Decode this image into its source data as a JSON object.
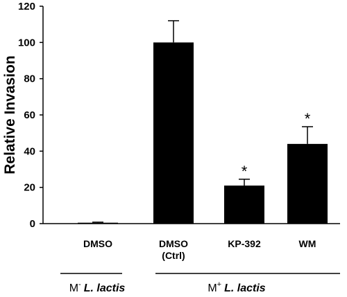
{
  "chart_data": {
    "type": "bar",
    "categories": [
      {
        "line1": "DMSO",
        "line2": ""
      },
      {
        "line1": "DMSO",
        "line2": "(Ctrl)"
      },
      {
        "line1": "KP-392",
        "line2": ""
      },
      {
        "line1": "WM",
        "line2": ""
      }
    ],
    "values": [
      0.5,
      100,
      21,
      44
    ],
    "errors": [
      0.3,
      12,
      3.5,
      9.5
    ],
    "significance": [
      "",
      "",
      "*",
      "*"
    ],
    "ylabel": "Relative Invasion",
    "ylim": [
      0,
      120
    ],
    "yticks": [
      0,
      20,
      40,
      60,
      80,
      100,
      120
    ],
    "bar_color": "#000000",
    "groups": [
      {
        "prefix": "M",
        "sup": "-",
        "name": "L. lactis",
        "categories": [
          0
        ]
      },
      {
        "prefix": "M",
        "sup": "+",
        "name": "L. lactis",
        "categories": [
          1,
          2,
          3
        ]
      }
    ],
    "grid": false,
    "legend": "none"
  }
}
